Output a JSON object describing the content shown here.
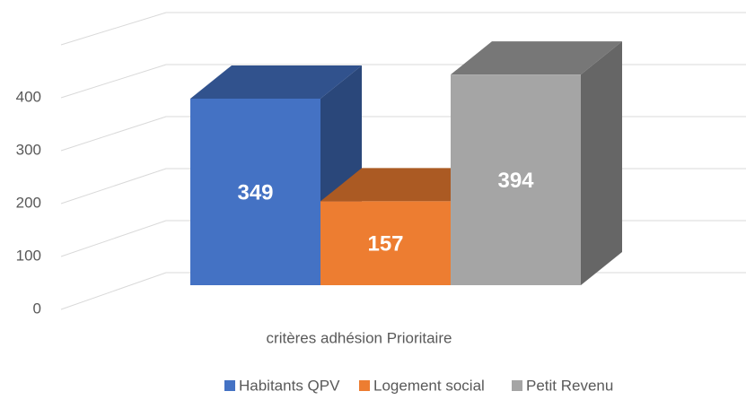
{
  "chart_data": {
    "type": "bar3d",
    "categories": [
      "critères adhésion Prioritaire"
    ],
    "series": [
      {
        "name": "Habitants QPV",
        "color": "#4472c4",
        "values": [
          349
        ]
      },
      {
        "name": "Logement social",
        "color": "#ed7d31",
        "values": [
          157
        ]
      },
      {
        "name": "Petit Revenu",
        "color": "#a5a5a5",
        "values": [
          394
        ]
      }
    ],
    "ylim": [
      0,
      500
    ],
    "yticks": [
      0,
      100,
      200,
      300,
      400
    ],
    "grid": true,
    "legend": "bottom"
  }
}
